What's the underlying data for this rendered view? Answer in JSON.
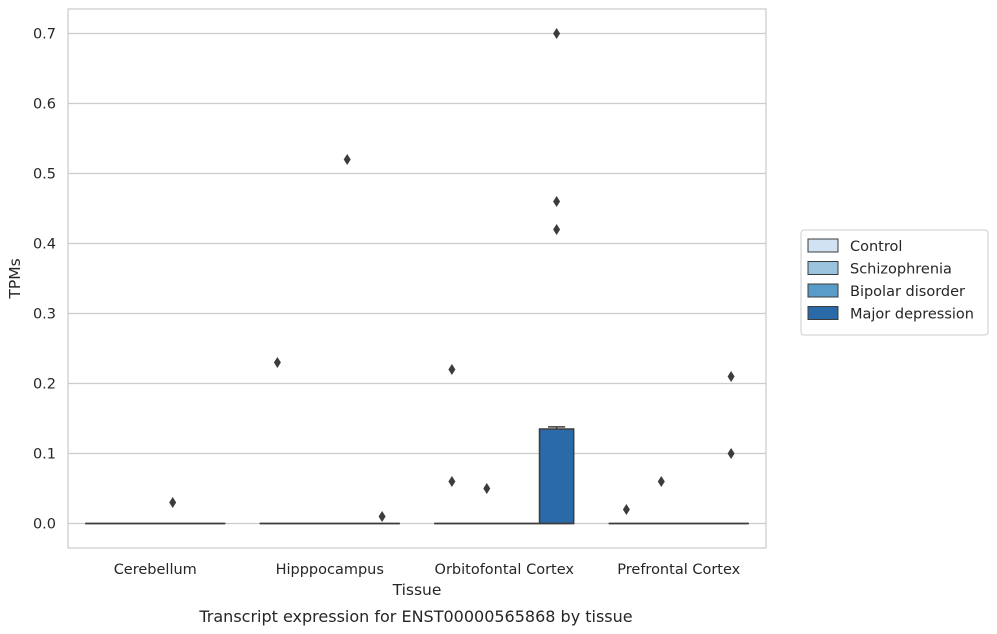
{
  "caption": "Transcript expression for ENST00000565868 by tissue",
  "chart_data": {
    "type": "box",
    "xlabel": "Tissue",
    "ylabel": "TPMs",
    "ylim": [
      -0.035,
      0.735
    ],
    "yticks": [
      0.0,
      0.1,
      0.2,
      0.3,
      0.4,
      0.5,
      0.6,
      0.7
    ],
    "ytick_labels": [
      "0.0",
      "0.1",
      "0.2",
      "0.3",
      "0.4",
      "0.5",
      "0.6",
      "0.7"
    ],
    "grid": true,
    "legend_position": "right",
    "categories": [
      "Cerebellum",
      "Hipppocampus",
      "Orbitofontal Cortex",
      "Prefrontal Cortex"
    ],
    "series": [
      {
        "name": "Control",
        "color": "#d1e2f2",
        "boxes": [
          {
            "q1": 0,
            "median": 0,
            "q3": 0,
            "whisker_low": 0,
            "whisker_high": 0,
            "outliers": []
          },
          {
            "q1": 0,
            "median": 0,
            "q3": 0,
            "whisker_low": 0,
            "whisker_high": 0,
            "outliers": [
              0.23
            ]
          },
          {
            "q1": 0,
            "median": 0,
            "q3": 0,
            "whisker_low": 0,
            "whisker_high": 0,
            "outliers": [
              0.22,
              0.06
            ]
          },
          {
            "q1": 0,
            "median": 0,
            "q3": 0,
            "whisker_low": 0,
            "whisker_high": 0,
            "outliers": [
              0.02
            ]
          }
        ]
      },
      {
        "name": "Schizophrenia",
        "color": "#9ac3de",
        "boxes": [
          {
            "q1": 0,
            "median": 0,
            "q3": 0,
            "whisker_low": 0,
            "whisker_high": 0,
            "outliers": []
          },
          {
            "q1": 0,
            "median": 0,
            "q3": 0,
            "whisker_low": 0,
            "whisker_high": 0,
            "outliers": []
          },
          {
            "q1": 0,
            "median": 0,
            "q3": 0,
            "whisker_low": 0,
            "whisker_high": 0,
            "outliers": [
              0.05
            ]
          },
          {
            "q1": 0,
            "median": 0,
            "q3": 0,
            "whisker_low": 0,
            "whisker_high": 0,
            "outliers": [
              0.06
            ]
          }
        ]
      },
      {
        "name": "Bipolar disorder",
        "color": "#5a9cc9",
        "boxes": [
          {
            "q1": 0,
            "median": 0,
            "q3": 0,
            "whisker_low": 0,
            "whisker_high": 0,
            "outliers": [
              0.03
            ]
          },
          {
            "q1": 0,
            "median": 0,
            "q3": 0,
            "whisker_low": 0,
            "whisker_high": 0,
            "outliers": [
              0.52
            ]
          },
          {
            "q1": 0,
            "median": 0,
            "q3": 0,
            "whisker_low": 0,
            "whisker_high": 0,
            "outliers": []
          },
          {
            "q1": 0,
            "median": 0,
            "q3": 0,
            "whisker_low": 0,
            "whisker_high": 0,
            "outliers": []
          }
        ]
      },
      {
        "name": "Major depression",
        "color": "#2a6aa8",
        "boxes": [
          {
            "q1": 0,
            "median": 0,
            "q3": 0,
            "whisker_low": 0,
            "whisker_high": 0,
            "outliers": []
          },
          {
            "q1": 0,
            "median": 0,
            "q3": 0,
            "whisker_low": 0,
            "whisker_high": 0,
            "outliers": [
              0.01
            ]
          },
          {
            "q1": 0,
            "median": 0,
            "q3": 0.135,
            "whisker_low": 0,
            "whisker_high": 0.138,
            "outliers": [
              0.7,
              0.46,
              0.42
            ]
          },
          {
            "q1": 0,
            "median": 0,
            "q3": 0,
            "whisker_low": 0,
            "whisker_high": 0,
            "outliers": [
              0.21,
              0.1
            ]
          }
        ]
      }
    ]
  }
}
